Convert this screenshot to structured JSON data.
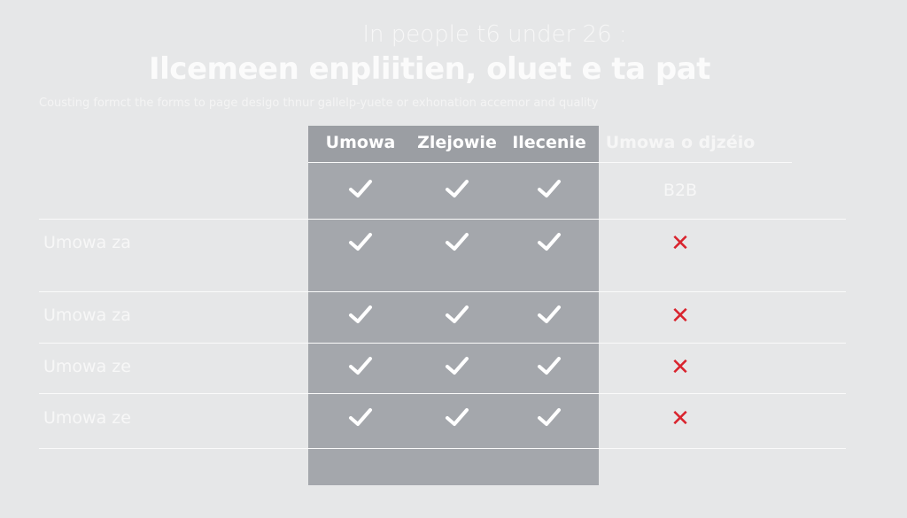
{
  "header": {
    "supertitle": "In people t6 under 26 :",
    "title": "Ilcemeen enpliitien, oluet e ta pat",
    "subtitle": "Cousting formct the forms to page desigo thnur gallelp-yuete or exhonation accemor and quality"
  },
  "table": {
    "columns": [
      "Umowa",
      "Zlejowie",
      "Ilecenie",
      "Umowa o djzéio"
    ],
    "rows": [
      {
        "label": "",
        "cells": [
          "check",
          "check",
          "check",
          "B2B"
        ]
      },
      {
        "label": "Umowa za",
        "cells": [
          "check",
          "check",
          "check",
          "cross"
        ]
      },
      {
        "label": "Umowa za",
        "cells": [
          "check",
          "check",
          "check",
          "cross"
        ]
      },
      {
        "label": "Umowa ze",
        "cells": [
          "check",
          "check",
          "check",
          "cross"
        ]
      },
      {
        "label": "Umowa ze",
        "cells": [
          "check",
          "check",
          "check",
          "cross"
        ]
      }
    ]
  },
  "colors": {
    "background": "#e6e7e8",
    "highlight_band": "#a4a7ac",
    "cross": "#d9242e"
  }
}
